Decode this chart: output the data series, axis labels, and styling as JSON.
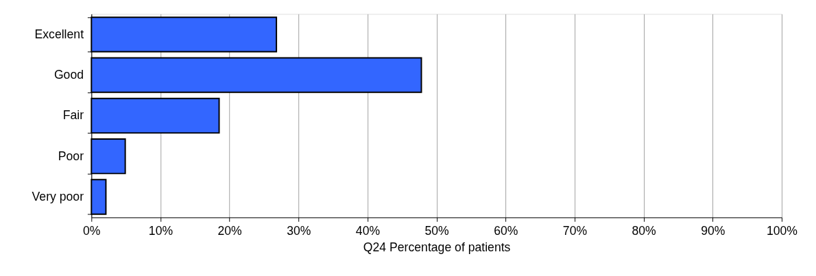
{
  "chart_data": {
    "type": "bar",
    "orientation": "horizontal",
    "xlabel": "Q24 Percentage of patients",
    "categories": [
      "Excellent",
      "Good",
      "Fair",
      "Poor",
      "Very poor"
    ],
    "values": [
      26.8,
      47.8,
      18.5,
      4.9,
      2.1
    ],
    "color": "#3366ff",
    "xlim": [
      0,
      100
    ],
    "xticks": [
      {
        "value": 0,
        "label": "0%"
      },
      {
        "value": 10,
        "label": "10%"
      },
      {
        "value": 20,
        "label": "20%"
      },
      {
        "value": 30,
        "label": "30%"
      },
      {
        "value": 40,
        "label": "40%"
      },
      {
        "value": 50,
        "label": "50%"
      },
      {
        "value": 60,
        "label": "60%"
      },
      {
        "value": 70,
        "label": "70%"
      },
      {
        "value": 80,
        "label": "80%"
      },
      {
        "value": 90,
        "label": "90%"
      },
      {
        "value": 100,
        "label": "100%"
      }
    ],
    "grid": "x"
  }
}
